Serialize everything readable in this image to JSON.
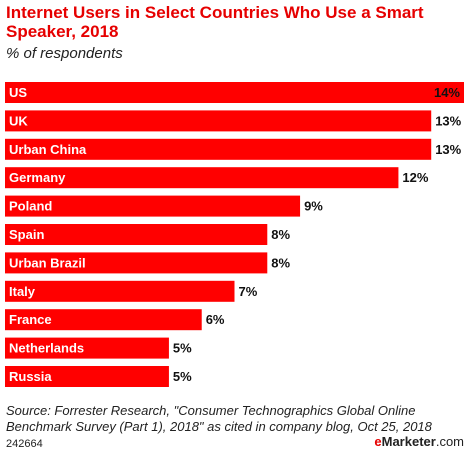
{
  "chart_data": {
    "type": "bar",
    "title": "Internet Users in Select Countries Who Use a Smart Speaker, 2018",
    "subtitle": "% of respondents",
    "categories": [
      "US",
      "UK",
      "Urban China",
      "Germany",
      "Poland",
      "Spain",
      "Urban Brazil",
      "Italy",
      "France",
      "Netherlands",
      "Russia"
    ],
    "values": [
      14,
      13,
      13,
      12,
      9,
      8,
      8,
      7,
      6,
      5,
      5
    ],
    "value_labels": [
      "14%",
      "13%",
      "13%",
      "12%",
      "9%",
      "8%",
      "8%",
      "7%",
      "6%",
      "5%",
      "5%"
    ],
    "orientation": "horizontal",
    "xlim": [
      0,
      14
    ],
    "grid": false,
    "bar_color": "#ff0000"
  },
  "footer": {
    "source": "Source: Forrester Research, \"Consumer Technographics Global Online Benchmark Survey (Part 1), 2018\" as cited in company blog, Oct 25, 2018",
    "chart_id": "242664",
    "brand_accent": "e",
    "brand_main": "Marketer",
    "brand_suffix": ".com"
  },
  "colors": {
    "title": "#e60000",
    "bar": "#ff0000",
    "label_on_bar": "#ffffff",
    "value_label": "#111111"
  }
}
